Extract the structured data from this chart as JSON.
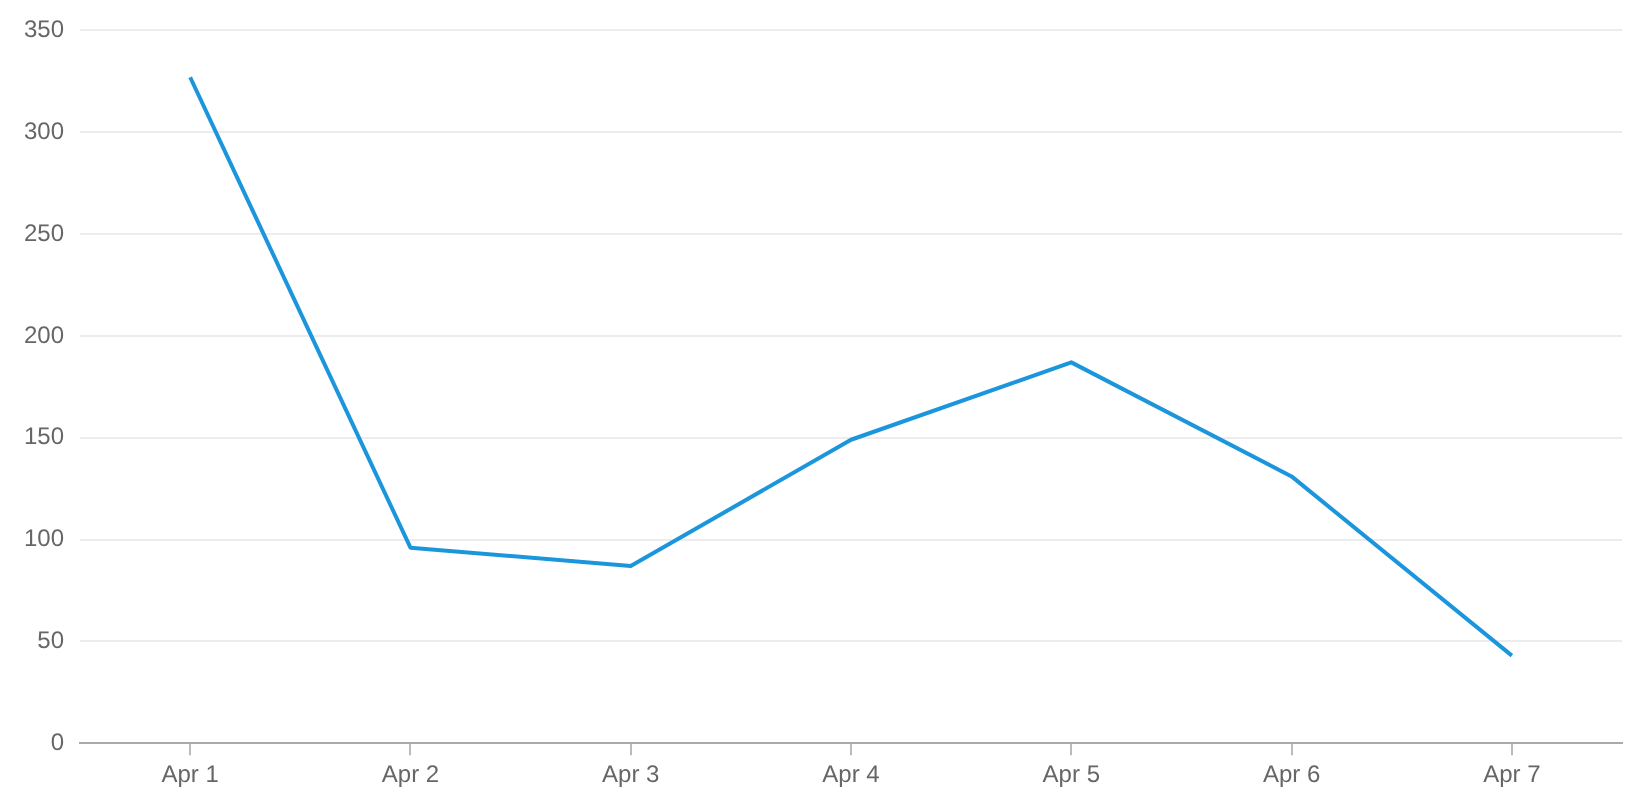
{
  "chart_data": {
    "type": "line",
    "categories": [
      "Apr 1",
      "Apr 2",
      "Apr 3",
      "Apr 4",
      "Apr 5",
      "Apr 6",
      "Apr 7"
    ],
    "series": [
      {
        "color": "#1b96dc",
        "values": [
          327,
          96,
          87,
          149,
          187,
          131,
          43
        ]
      }
    ],
    "ylim": [
      0,
      350
    ],
    "yticks": [
      0,
      50,
      100,
      150,
      200,
      250,
      300,
      350
    ],
    "grid": "y",
    "legend": false,
    "marker": "none",
    "line_style": "solid"
  }
}
